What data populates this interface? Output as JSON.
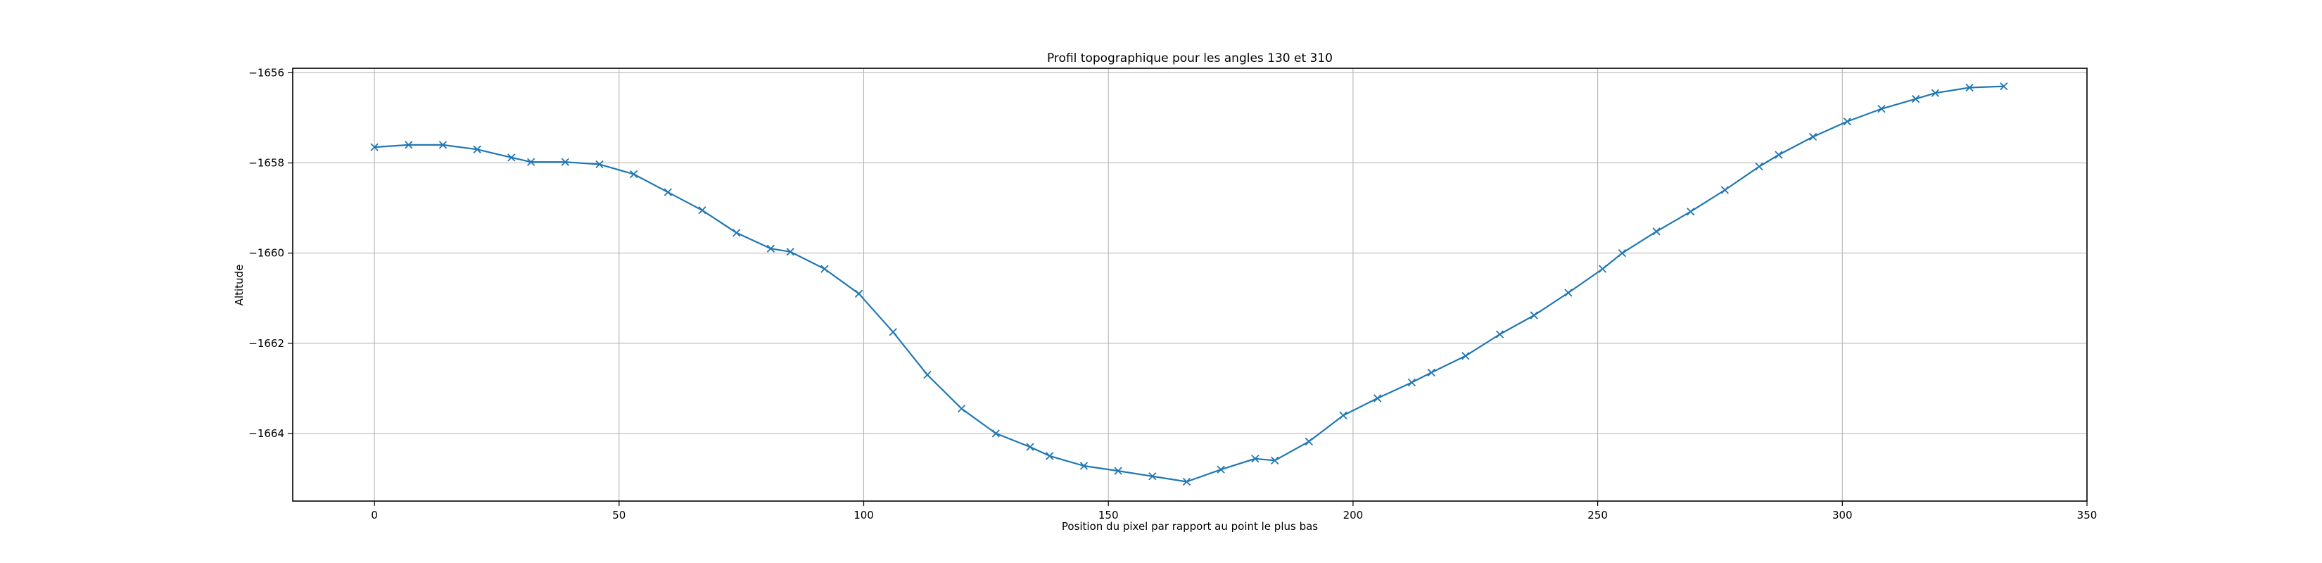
{
  "chart_data": {
    "type": "line",
    "title": "Profil topographique pour les angles 130 et 310",
    "xlabel": "Position du pixel par rapport au point le plus bas",
    "ylabel": "Altitude",
    "xlim": [
      -16.7,
      350
    ],
    "ylim": [
      -1665.5,
      -1655.9
    ],
    "xticks": [
      0,
      50,
      100,
      150,
      200,
      250,
      300,
      350
    ],
    "yticks": [
      -1656,
      -1658,
      -1660,
      -1662,
      -1664
    ],
    "xtick_labels": [
      "0",
      "50",
      "100",
      "150",
      "200",
      "250",
      "300",
      "350"
    ],
    "ytick_labels": [
      "−1656",
      "−1658",
      "−1660",
      "−1662",
      "−1664"
    ],
    "grid": true,
    "line_color": "#1f77b4",
    "marker": "x",
    "series": [
      {
        "x": [
          0,
          7,
          14,
          21,
          28,
          32,
          39,
          46,
          53,
          60,
          67,
          74,
          81,
          85,
          92,
          99,
          106,
          113,
          120,
          127,
          134,
          138,
          145,
          152,
          159,
          166,
          173,
          180,
          184,
          191,
          198,
          205,
          212,
          216,
          223,
          230,
          237,
          244,
          251,
          255,
          262,
          269,
          276,
          283,
          287,
          294,
          301,
          308,
          315,
          319,
          326,
          333
        ],
        "y": [
          -1657.65,
          -1657.6,
          -1657.6,
          -1657.7,
          -1657.88,
          -1657.98,
          -1657.98,
          -1658.03,
          -1658.25,
          -1658.65,
          -1659.05,
          -1659.55,
          -1659.9,
          -1659.97,
          -1660.35,
          -1660.9,
          -1661.75,
          -1662.7,
          -1663.45,
          -1664.0,
          -1664.3,
          -1664.5,
          -1664.72,
          -1664.83,
          -1664.95,
          -1665.07,
          -1664.8,
          -1664.56,
          -1664.6,
          -1664.18,
          -1663.6,
          -1663.22,
          -1662.87,
          -1662.65,
          -1662.28,
          -1661.8,
          -1661.38,
          -1660.88,
          -1660.35,
          -1660.0,
          -1659.52,
          -1659.08,
          -1658.6,
          -1658.08,
          -1657.82,
          -1657.42,
          -1657.08,
          -1656.8,
          -1656.58,
          -1656.45,
          -1656.33,
          -1656.3
        ]
      }
    ]
  }
}
